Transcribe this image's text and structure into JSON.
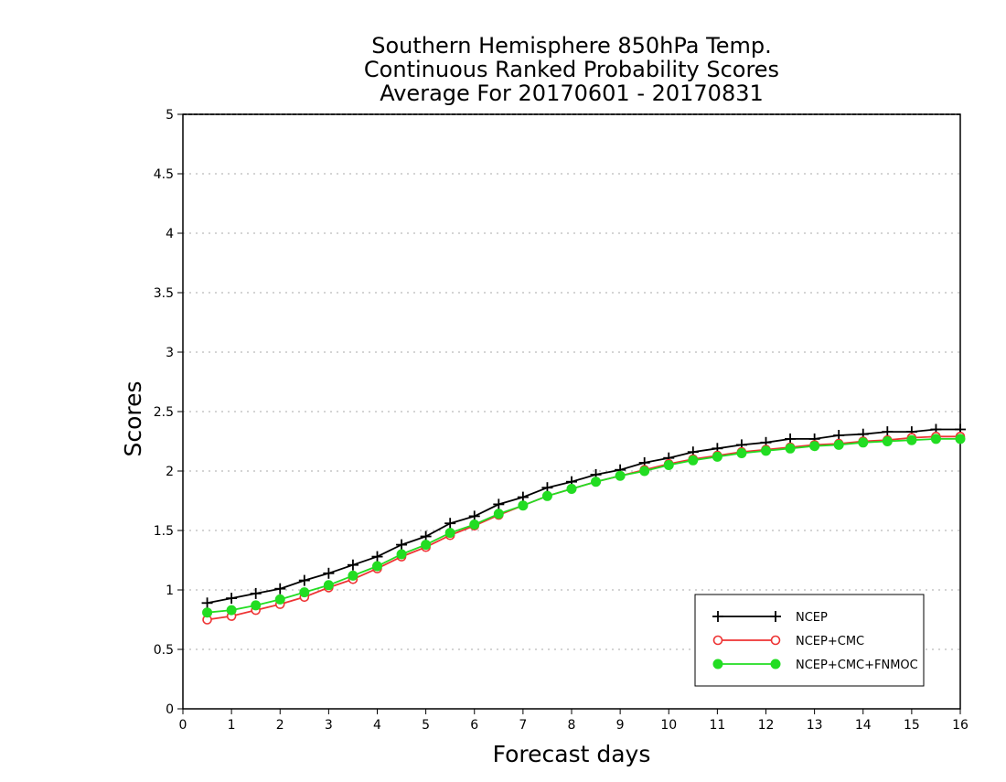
{
  "chart_data": {
    "type": "line",
    "title": [
      "Southern Hemisphere 850hPa Temp.",
      "Continuous Ranked Probability Scores",
      "Average For 20170601 - 20170831"
    ],
    "xlabel": "Forecast days",
    "ylabel": "Scores",
    "xlim": [
      0,
      16
    ],
    "ylim": [
      0,
      5
    ],
    "xticks": [
      "0",
      "1",
      "2",
      "3",
      "4",
      "5",
      "6",
      "7",
      "8",
      "9",
      "10",
      "11",
      "12",
      "13",
      "14",
      "15",
      "16"
    ],
    "yticks": [
      "0",
      "0.5",
      "1",
      "1.5",
      "2",
      "2.5",
      "3",
      "3.5",
      "4",
      "4.5",
      "5"
    ],
    "grid": true,
    "legend_position": "bottom-right",
    "x": [
      0.5,
      1,
      1.5,
      2,
      2.5,
      3,
      3.5,
      4,
      4.5,
      5,
      5.5,
      6,
      6.5,
      7,
      7.5,
      8,
      8.5,
      9,
      9.5,
      10,
      10.5,
      11,
      11.5,
      12,
      12.5,
      13,
      13.5,
      14,
      14.5,
      15,
      15.5,
      16
    ],
    "series": [
      {
        "name": "NCEP",
        "color": "#000000",
        "marker": "plus",
        "values": [
          0.89,
          0.93,
          0.97,
          1.01,
          1.08,
          1.14,
          1.21,
          1.28,
          1.38,
          1.45,
          1.56,
          1.62,
          1.72,
          1.78,
          1.86,
          1.91,
          1.97,
          2.01,
          2.07,
          2.11,
          2.16,
          2.19,
          2.22,
          2.24,
          2.27,
          2.27,
          2.3,
          2.31,
          2.33,
          2.33,
          2.35,
          2.35
        ]
      },
      {
        "name": "NCEP+CMC",
        "color": "#ee3333",
        "marker": "open-circle",
        "values": [
          0.75,
          0.78,
          0.83,
          0.88,
          0.94,
          1.02,
          1.09,
          1.18,
          1.28,
          1.36,
          1.46,
          1.54,
          1.63,
          1.71,
          1.79,
          1.85,
          1.91,
          1.96,
          2.01,
          2.06,
          2.1,
          2.13,
          2.16,
          2.18,
          2.2,
          2.22,
          2.23,
          2.25,
          2.26,
          2.28,
          2.29,
          2.29
        ]
      },
      {
        "name": "NCEP+CMC+FNMOC",
        "color": "#22dd22",
        "marker": "filled-circle",
        "values": [
          0.81,
          0.83,
          0.87,
          0.92,
          0.98,
          1.04,
          1.12,
          1.2,
          1.3,
          1.38,
          1.48,
          1.55,
          1.64,
          1.71,
          1.79,
          1.85,
          1.91,
          1.96,
          2.0,
          2.05,
          2.09,
          2.12,
          2.15,
          2.17,
          2.19,
          2.21,
          2.22,
          2.24,
          2.25,
          2.26,
          2.27,
          2.27
        ]
      }
    ]
  }
}
